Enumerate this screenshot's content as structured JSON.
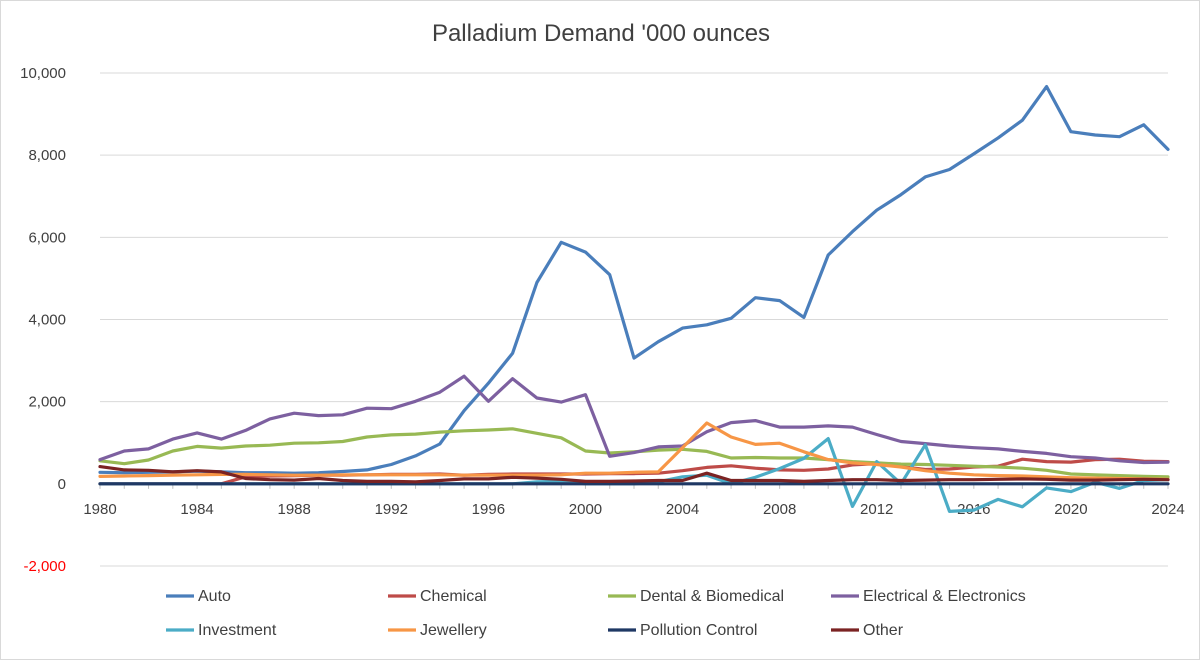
{
  "chart_data": {
    "type": "line",
    "title": "Palladium Demand '000 ounces",
    "xlabel": "",
    "ylabel": "",
    "ylim": [
      -2000,
      10000
    ],
    "xlim": [
      1980,
      2024
    ],
    "y_ticks": [
      {
        "value": 10000,
        "label": "10,000",
        "color": "#404040"
      },
      {
        "value": 8000,
        "label": "8,000",
        "color": "#404040"
      },
      {
        "value": 6000,
        "label": "6,000",
        "color": "#404040"
      },
      {
        "value": 4000,
        "label": "4,000",
        "color": "#404040"
      },
      {
        "value": 2000,
        "label": "2,000",
        "color": "#404040"
      },
      {
        "value": 0,
        "label": "0",
        "color": "#404040"
      },
      {
        "value": -2000,
        "label": "-2,000",
        "color": "#ff0000"
      }
    ],
    "x_ticks": [
      {
        "value": 1980,
        "label": "1980"
      },
      {
        "value": 1984,
        "label": "1984"
      },
      {
        "value": 1988,
        "label": "1988"
      },
      {
        "value": 1992,
        "label": "1992"
      },
      {
        "value": 1996,
        "label": "1996"
      },
      {
        "value": 2000,
        "label": "2000"
      },
      {
        "value": 2004,
        "label": "2004"
      },
      {
        "value": 2008,
        "label": "2008"
      },
      {
        "value": 2012,
        "label": "2012"
      },
      {
        "value": 2016,
        "label": "2016"
      },
      {
        "value": 2020,
        "label": "2020"
      },
      {
        "value": 2024,
        "label": "2024"
      }
    ],
    "legend_position": "bottom",
    "x": [
      1980,
      1981,
      1982,
      1983,
      1984,
      1985,
      1986,
      1987,
      1988,
      1989,
      1990,
      1991,
      1992,
      1993,
      1994,
      1995,
      1996,
      1997,
      1998,
      1999,
      2000,
      2001,
      2002,
      2003,
      2004,
      2005,
      2006,
      2007,
      2008,
      2009,
      2010,
      2011,
      2012,
      2013,
      2014,
      2015,
      2016,
      2017,
      2018,
      2019,
      2020,
      2021,
      2022,
      2023,
      2024
    ],
    "series": [
      {
        "name": "Auto",
        "color": "#4a7ebb",
        "values": [
          280,
          270,
          280,
          290,
          310,
          290,
          270,
          270,
          260,
          270,
          300,
          340,
          470,
          680,
          970,
          1780,
          2450,
          3180,
          4900,
          5880,
          5640,
          5090,
          3060,
          3460,
          3790,
          3870,
          4030,
          4530,
          4460,
          4050,
          5570,
          6140,
          6660,
          7040,
          7470,
          7650,
          8030,
          8420,
          8850,
          9670,
          8570,
          8490,
          8450,
          8740,
          8140
        ]
      },
      {
        "name": "Chemical",
        "color": "#be4b48",
        "values": [
          0,
          0,
          0,
          0,
          0,
          0,
          170,
          190,
          200,
          210,
          210,
          220,
          230,
          230,
          240,
          210,
          230,
          240,
          240,
          240,
          240,
          250,
          250,
          260,
          320,
          400,
          440,
          380,
          340,
          330,
          360,
          460,
          490,
          420,
          350,
          360,
          410,
          430,
          600,
          540,
          530,
          590,
          600,
          550,
          540
        ]
      },
      {
        "name": "Dental & Biomedical",
        "color": "#98b954",
        "values": [
          560,
          490,
          580,
          800,
          910,
          870,
          920,
          940,
          990,
          1000,
          1030,
          1140,
          1190,
          1210,
          1260,
          1290,
          1310,
          1340,
          1230,
          1120,
          800,
          750,
          780,
          820,
          840,
          790,
          630,
          640,
          630,
          630,
          590,
          540,
          510,
          480,
          470,
          450,
          430,
          410,
          380,
          330,
          240,
          220,
          200,
          180,
          170
        ]
      },
      {
        "name": "Electrical & Electronics",
        "color": "#7d60a0",
        "values": [
          590,
          800,
          850,
          1090,
          1240,
          1090,
          1300,
          1580,
          1720,
          1660,
          1680,
          1840,
          1830,
          2010,
          2230,
          2620,
          2010,
          2560,
          2090,
          1990,
          2170,
          670,
          760,
          900,
          920,
          1270,
          1490,
          1540,
          1380,
          1380,
          1410,
          1380,
          1200,
          1030,
          980,
          920,
          880,
          850,
          790,
          740,
          660,
          630,
          560,
          520,
          530
        ]
      },
      {
        "name": "Investment",
        "color": "#4bacc6",
        "values": [
          0,
          0,
          0,
          0,
          0,
          0,
          0,
          0,
          0,
          0,
          0,
          0,
          0,
          0,
          0,
          0,
          0,
          0,
          50,
          60,
          0,
          0,
          0,
          50,
          170,
          210,
          0,
          160,
          370,
          620,
          1100,
          -550,
          540,
          0,
          950,
          -670,
          -640,
          -380,
          -560,
          -100,
          -190,
          40,
          -110,
          80,
          100
        ]
      },
      {
        "name": "Jewellery",
        "color": "#f79646",
        "values": [
          180,
          190,
          200,
          210,
          220,
          230,
          230,
          220,
          210,
          210,
          220,
          220,
          220,
          220,
          220,
          210,
          210,
          210,
          210,
          220,
          260,
          260,
          280,
          290,
          880,
          1480,
          1140,
          960,
          990,
          780,
          590,
          510,
          470,
          410,
          320,
          260,
          220,
          200,
          190,
          170,
          150,
          140,
          130,
          120,
          110
        ]
      },
      {
        "name": "Pollution Control",
        "color": "#1f3864",
        "values": [
          0,
          0,
          0,
          0,
          0,
          0,
          0,
          0,
          0,
          0,
          0,
          0,
          0,
          0,
          0,
          0,
          0,
          0,
          0,
          0,
          0,
          0,
          0,
          0,
          0,
          0,
          0,
          0,
          0,
          0,
          0,
          0,
          0,
          0,
          0,
          0,
          0,
          0,
          0,
          0,
          0,
          0,
          0,
          0,
          0
        ]
      },
      {
        "name": "Other",
        "color": "#7b2323",
        "values": [
          420,
          340,
          330,
          290,
          320,
          290,
          130,
          100,
          90,
          130,
          80,
          60,
          60,
          50,
          80,
          120,
          120,
          160,
          140,
          110,
          60,
          60,
          70,
          80,
          80,
          260,
          80,
          80,
          80,
          60,
          80,
          100,
          100,
          80,
          90,
          100,
          100,
          110,
          120,
          110,
          90,
          90,
          100,
          110,
          100
        ]
      }
    ]
  }
}
